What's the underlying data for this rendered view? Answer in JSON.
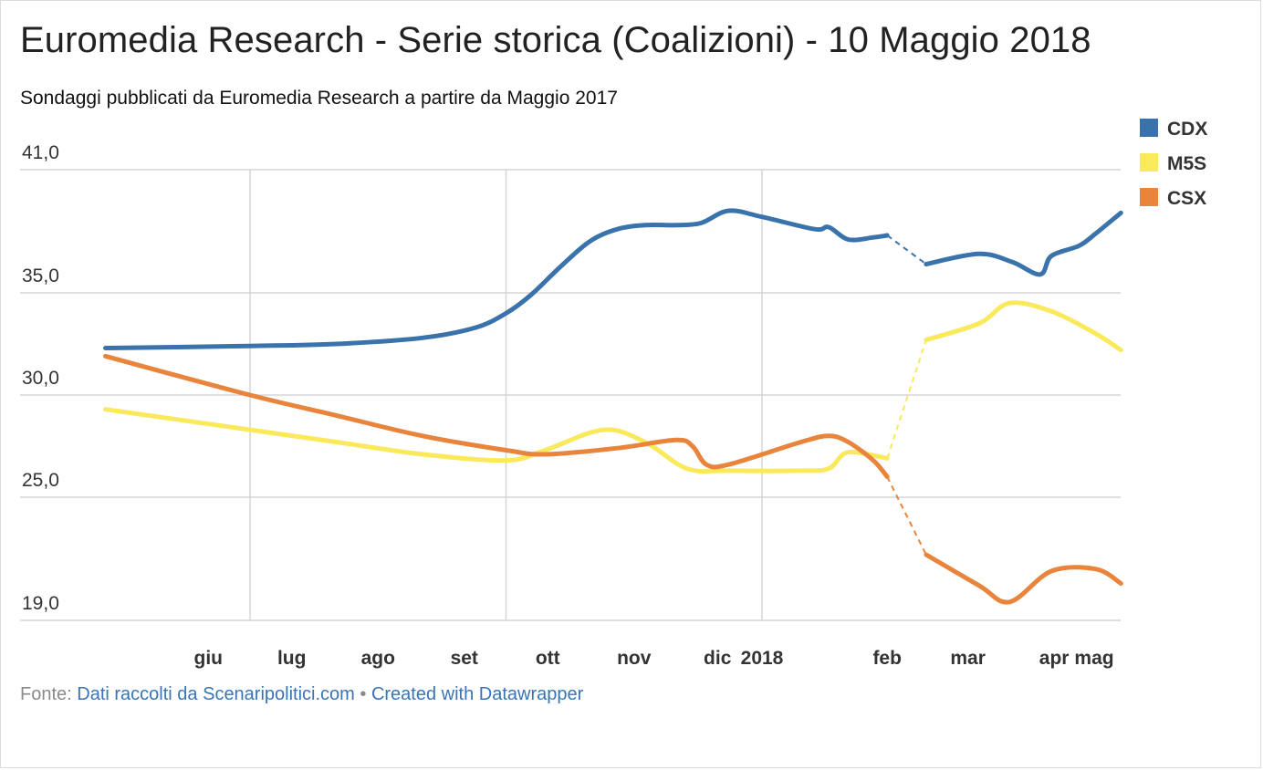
{
  "title": "Euromedia Research - Serie storica (Coalizioni) - 10 Maggio 2018",
  "subtitle": "Sondaggi pubblicati da Euromedia Research a partire da Maggio 2017",
  "footer": {
    "prefix": "Fonte: ",
    "source_link": "Dati raccolti da Scenaripolitici.com",
    "separator": " • ",
    "credit_link": "Created with Datawrapper"
  },
  "chart_data": {
    "type": "line",
    "x_ticks": [
      "giu",
      "lug",
      "ago",
      "set",
      "ott",
      "nov",
      "dic",
      "2018",
      "feb",
      "mar",
      "apr",
      "mag"
    ],
    "y_ticks": [
      "41,0",
      "35,0",
      "30,0",
      "25,0",
      "19,0"
    ],
    "ylim": [
      19,
      41
    ],
    "legend_position": "top-right",
    "grid": true,
    "series": [
      {
        "name": "CDX",
        "color": "#3a73ac",
        "points": [
          [
            "2017-05-10",
            32.3
          ],
          [
            "2017-07-01",
            32.4
          ],
          [
            "2017-08-01",
            32.5
          ],
          [
            "2017-09-01",
            32.8
          ],
          [
            "2017-09-20",
            33.3
          ],
          [
            "2017-10-01",
            34.0
          ],
          [
            "2017-10-10",
            34.9
          ],
          [
            "2017-10-20",
            36.2
          ],
          [
            "2017-10-31",
            37.5
          ],
          [
            "2017-11-10",
            38.1
          ],
          [
            "2017-11-20",
            38.3
          ],
          [
            "2017-12-01",
            38.3
          ],
          [
            "2017-12-10",
            38.4
          ],
          [
            "2017-12-20",
            39.0
          ],
          [
            "2018-01-01",
            38.7
          ],
          [
            "2018-01-20",
            38.1
          ],
          [
            "2018-01-25",
            38.2
          ],
          [
            "2018-02-01",
            37.6
          ],
          [
            "2018-02-10",
            37.7
          ],
          [
            "2018-02-15",
            37.8
          ]
        ],
        "points_after": [
          [
            "2018-03-01",
            36.4
          ],
          [
            "2018-03-20",
            36.9
          ],
          [
            "2018-04-01",
            36.5
          ],
          [
            "2018-04-11",
            35.9
          ],
          [
            "2018-04-15",
            36.8
          ],
          [
            "2018-04-25",
            37.3
          ],
          [
            "2018-05-01",
            37.9
          ],
          [
            "2018-05-10",
            38.9
          ]
        ]
      },
      {
        "name": "M5S",
        "color": "#f9e95b",
        "points": [
          [
            "2017-05-10",
            29.3
          ],
          [
            "2017-07-01",
            28.3
          ],
          [
            "2017-08-01",
            27.7
          ],
          [
            "2017-09-01",
            27.1
          ],
          [
            "2017-10-01",
            26.8
          ],
          [
            "2017-10-15",
            27.3
          ],
          [
            "2017-11-05",
            28.3
          ],
          [
            "2017-11-20",
            27.7
          ],
          [
            "2017-12-05",
            26.4
          ],
          [
            "2017-12-20",
            26.3
          ],
          [
            "2018-01-15",
            26.3
          ],
          [
            "2018-01-25",
            26.4
          ],
          [
            "2018-02-01",
            27.2
          ],
          [
            "2018-02-15",
            26.9
          ]
        ],
        "points_after": [
          [
            "2018-03-01",
            32.7
          ],
          [
            "2018-03-20",
            33.5
          ],
          [
            "2018-03-31",
            34.5
          ],
          [
            "2018-04-15",
            34.1
          ],
          [
            "2018-05-01",
            33.0
          ],
          [
            "2018-05-10",
            32.2
          ]
        ]
      },
      {
        "name": "CSX",
        "color": "#e8843b",
        "points": [
          [
            "2017-05-10",
            31.9
          ],
          [
            "2017-07-01",
            30.0
          ],
          [
            "2017-08-01",
            29.0
          ],
          [
            "2017-09-01",
            28.0
          ],
          [
            "2017-10-01",
            27.3
          ],
          [
            "2017-10-15",
            27.1
          ],
          [
            "2017-11-10",
            27.4
          ],
          [
            "2017-12-01",
            27.8
          ],
          [
            "2017-12-07",
            27.5
          ],
          [
            "2017-12-12",
            26.6
          ],
          [
            "2017-12-20",
            26.6
          ],
          [
            "2018-01-15",
            27.7
          ],
          [
            "2018-01-25",
            28.0
          ],
          [
            "2018-02-01",
            27.7
          ],
          [
            "2018-02-10",
            26.8
          ],
          [
            "2018-02-15",
            26.0
          ]
        ],
        "points_after": [
          [
            "2018-03-01",
            22.2
          ],
          [
            "2018-03-20",
            20.7
          ],
          [
            "2018-03-31",
            19.9
          ],
          [
            "2018-04-15",
            21.4
          ],
          [
            "2018-05-01",
            21.5
          ],
          [
            "2018-05-10",
            20.8
          ]
        ]
      }
    ]
  }
}
